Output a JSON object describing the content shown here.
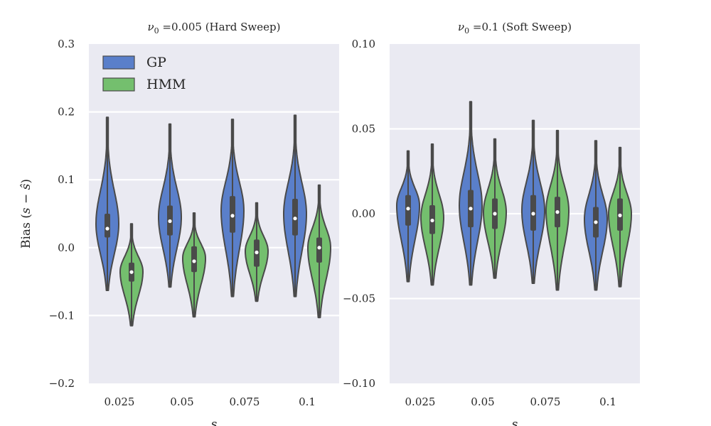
{
  "chart_data": [
    {
      "type": "violin",
      "title_sym": "ν",
      "title_sub": "0",
      "title_rest": " =0.005 (Hard Sweep)",
      "ylabel_prefix": "Bias (",
      "ylabel_var": "s",
      "ylabel_minus": " − ",
      "ylabel_hat": "ŝ",
      "ylabel_suffix": ")",
      "xlabel": "s",
      "categories": [
        "0.025",
        "0.05",
        "0.075",
        "0.1"
      ],
      "ylim": [
        -0.2,
        0.3
      ],
      "yticks": [
        -0.2,
        -0.1,
        0.0,
        0.1,
        0.2,
        0.3
      ],
      "ytick_labels": [
        "−0.2",
        "−0.1",
        "0.0",
        "0.1",
        "0.2",
        "0.3"
      ],
      "grid": true,
      "legend": {
        "placement": "top-left",
        "entries": [
          "GP",
          "HMM"
        ]
      },
      "series": [
        {
          "name": "GP",
          "color": "#4C72B0",
          "fill": "#5A7FCA",
          "stats": [
            {
              "min": -0.063,
              "q1": 0.015,
              "median": 0.028,
              "q3": 0.05,
              "max": 0.192,
              "mode": 0.035
            },
            {
              "min": -0.058,
              "q1": 0.018,
              "median": 0.039,
              "q3": 0.062,
              "max": 0.182,
              "mode": 0.045
            },
            {
              "min": -0.072,
              "q1": 0.022,
              "median": 0.047,
              "q3": 0.076,
              "max": 0.189,
              "mode": 0.055
            },
            {
              "min": -0.072,
              "q1": 0.018,
              "median": 0.043,
              "q3": 0.072,
              "max": 0.195,
              "mode": 0.05
            }
          ]
        },
        {
          "name": "HMM",
          "color": "#55A868",
          "fill": "#74BF6E",
          "stats": [
            {
              "min": -0.115,
              "q1": -0.05,
              "median": -0.036,
              "q3": -0.022,
              "max": 0.035,
              "mode": -0.035
            },
            {
              "min": -0.102,
              "q1": -0.036,
              "median": -0.02,
              "q3": 0.002,
              "max": 0.051,
              "mode": -0.015
            },
            {
              "min": -0.079,
              "q1": -0.028,
              "median": -0.007,
              "q3": 0.012,
              "max": 0.066,
              "mode": -0.005
            },
            {
              "min": -0.103,
              "q1": -0.022,
              "median": 0.0,
              "q3": 0.015,
              "max": 0.092,
              "mode": 0.0
            }
          ]
        }
      ]
    },
    {
      "type": "violin",
      "title_sym": "ν",
      "title_sub": "0",
      "title_rest": " =0.1 (Soft Sweep)",
      "xlabel": "s",
      "categories": [
        "0.025",
        "0.05",
        "0.075",
        "0.1"
      ],
      "ylim": [
        -0.1,
        0.1
      ],
      "yticks": [
        -0.1,
        -0.05,
        0.0,
        0.05,
        0.1
      ],
      "ytick_labels": [
        "−0.10",
        "−0.05",
        "0.00",
        "0.05",
        "0.10"
      ],
      "grid": true,
      "series": [
        {
          "name": "GP",
          "color": "#4C72B0",
          "fill": "#5A7FCA",
          "stats": [
            {
              "min": -0.04,
              "q1": -0.007,
              "median": 0.003,
              "q3": 0.011,
              "max": 0.037,
              "mode": 0.005
            },
            {
              "min": -0.042,
              "q1": -0.008,
              "median": 0.003,
              "q3": 0.014,
              "max": 0.066,
              "mode": 0.005
            },
            {
              "min": -0.041,
              "q1": -0.01,
              "median": 0.0,
              "q3": 0.011,
              "max": 0.055,
              "mode": 0.002
            },
            {
              "min": -0.045,
              "q1": -0.014,
              "median": -0.005,
              "q3": 0.004,
              "max": 0.043,
              "mode": -0.003
            }
          ]
        },
        {
          "name": "HMM",
          "color": "#55A868",
          "fill": "#74BF6E",
          "stats": [
            {
              "min": -0.042,
              "q1": -0.012,
              "median": -0.004,
              "q3": 0.005,
              "max": 0.041,
              "mode": -0.002
            },
            {
              "min": -0.038,
              "q1": -0.009,
              "median": 0.0,
              "q3": 0.009,
              "max": 0.044,
              "mode": 0.001
            },
            {
              "min": -0.045,
              "q1": -0.008,
              "median": 0.001,
              "q3": 0.01,
              "max": 0.049,
              "mode": 0.002
            },
            {
              "min": -0.043,
              "q1": -0.01,
              "median": -0.001,
              "q3": 0.009,
              "max": 0.039,
              "mode": 0.0
            }
          ]
        }
      ]
    }
  ]
}
